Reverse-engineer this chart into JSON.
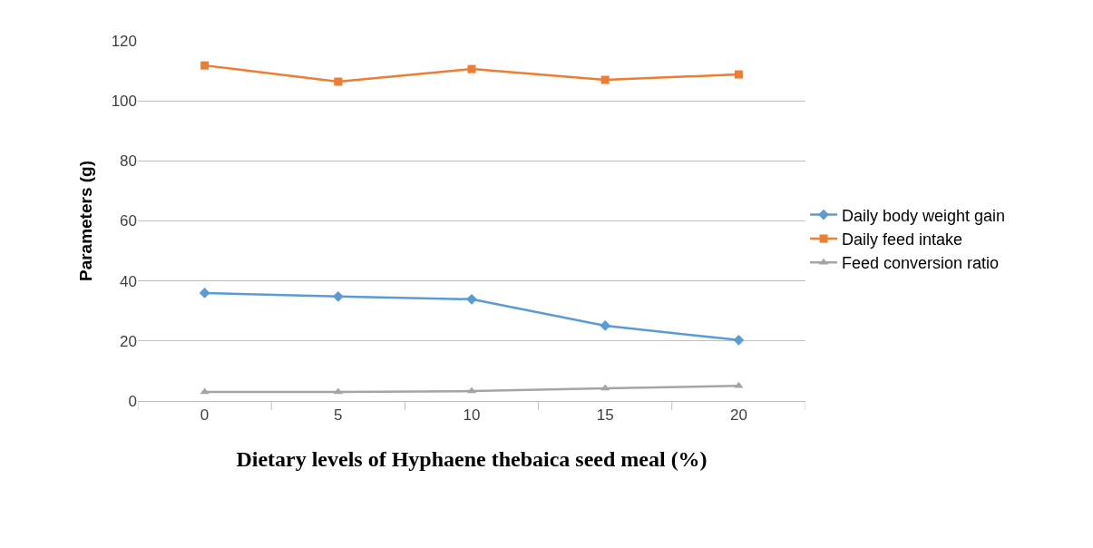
{
  "chart_data": {
    "type": "line",
    "xlabel": "Dietary levels of Hyphaene thebaica seed meal (%)",
    "ylabel": "Parameters (g)",
    "categories": [
      "0",
      "5",
      "10",
      "15",
      "20"
    ],
    "ylim": [
      0,
      120
    ],
    "yticks": [
      0,
      20,
      40,
      60,
      80,
      100,
      120
    ],
    "grid": "y",
    "legend": "right",
    "series": [
      {
        "name": "Daily body weight gain",
        "color": "#5b9bd5",
        "marker": "diamond",
        "values": [
          36.0,
          34.8,
          33.9,
          25.1,
          20.3
        ]
      },
      {
        "name": "Daily feed intake",
        "color": "#ed7d31",
        "marker": "square",
        "values": [
          111.8,
          106.4,
          110.6,
          107.0,
          108.8
        ]
      },
      {
        "name": "Feed conversion ratio",
        "color": "#a5a5a5",
        "marker": "triangle",
        "values": [
          3.0,
          3.0,
          3.3,
          4.2,
          5.1
        ]
      }
    ]
  }
}
